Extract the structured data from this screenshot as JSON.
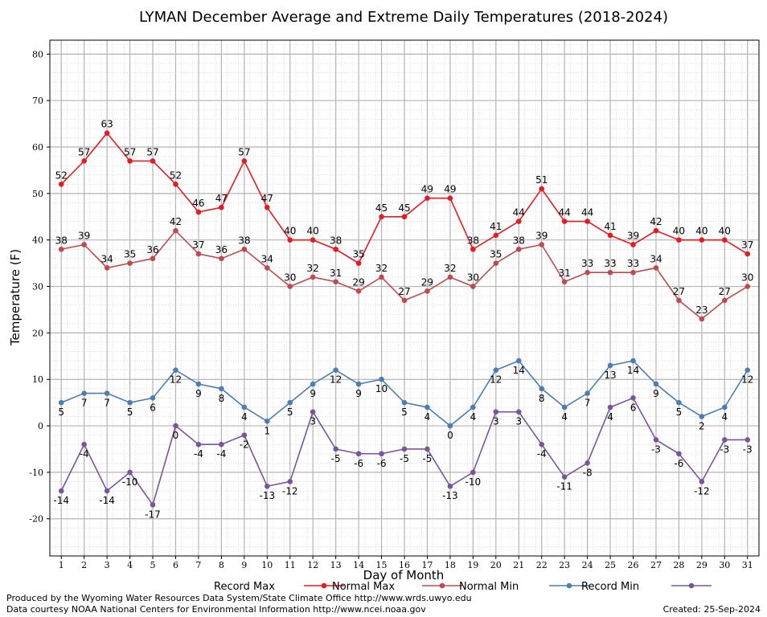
{
  "chart_data": {
    "type": "line",
    "title": "LYMAN December Average and Extreme Daily Temperatures (2018-2024)",
    "xlabel": "Day of Month",
    "ylabel": "Temperature (F)",
    "ylim": [
      -28,
      83
    ],
    "yticks": [
      -20,
      -10,
      0,
      10,
      20,
      30,
      40,
      50,
      60,
      70,
      80
    ],
    "grid": true,
    "legend_position": "bottom",
    "x": [
      1,
      2,
      3,
      4,
      5,
      6,
      7,
      8,
      9,
      10,
      11,
      12,
      13,
      14,
      15,
      16,
      17,
      18,
      19,
      20,
      21,
      22,
      23,
      24,
      25,
      26,
      27,
      28,
      29,
      30,
      31
    ],
    "series": [
      {
        "name": "Record Max",
        "color": "#e8191f",
        "values": [
          52,
          57,
          63,
          57,
          57,
          52,
          46,
          47,
          57,
          47,
          40,
          40,
          38,
          35,
          45,
          45,
          49,
          49,
          38,
          41,
          44,
          51,
          44,
          44,
          41,
          39,
          42,
          40,
          40,
          40,
          37
        ]
      },
      {
        "name": "Normal Max",
        "color": "#bf4a4d",
        "values": [
          38,
          39,
          34,
          35,
          36,
          42,
          37,
          36,
          38,
          34,
          30,
          32,
          31,
          29,
          32,
          27,
          29,
          32,
          30,
          35,
          38,
          39,
          31,
          33,
          33,
          33,
          34,
          27,
          23,
          27,
          30
        ]
      },
      {
        "name": "Normal Min",
        "color": "#4a7eb5",
        "values": [
          5,
          7,
          7,
          5,
          6,
          12,
          9,
          8,
          4,
          1,
          5,
          9,
          12,
          9,
          10,
          5,
          4,
          0,
          4,
          12,
          14,
          8,
          4,
          7,
          13,
          14,
          9,
          5,
          2,
          4,
          12
        ]
      },
      {
        "name": "Record Min",
        "color": "#7a559e",
        "values": [
          -14,
          -4,
          -14,
          -10,
          -17,
          0,
          -4,
          -4,
          -2,
          -13,
          -12,
          3,
          -5,
          -6,
          -6,
          -5,
          -5,
          -13,
          -10,
          3,
          3,
          -4,
          -11,
          -8,
          4,
          6,
          -3,
          -6,
          -12,
          -3,
          -3
        ]
      }
    ]
  },
  "footer": {
    "produced_by": "Produced by the Wyoming Water Resources Data System/State Climate Office http://www.wrds.uwyo.edu",
    "courtesy": "Data courtesy NOAA National Centers for Environmental Information http://www.ncei.noaa.gov",
    "created": "Created: 25-Sep-2024"
  }
}
